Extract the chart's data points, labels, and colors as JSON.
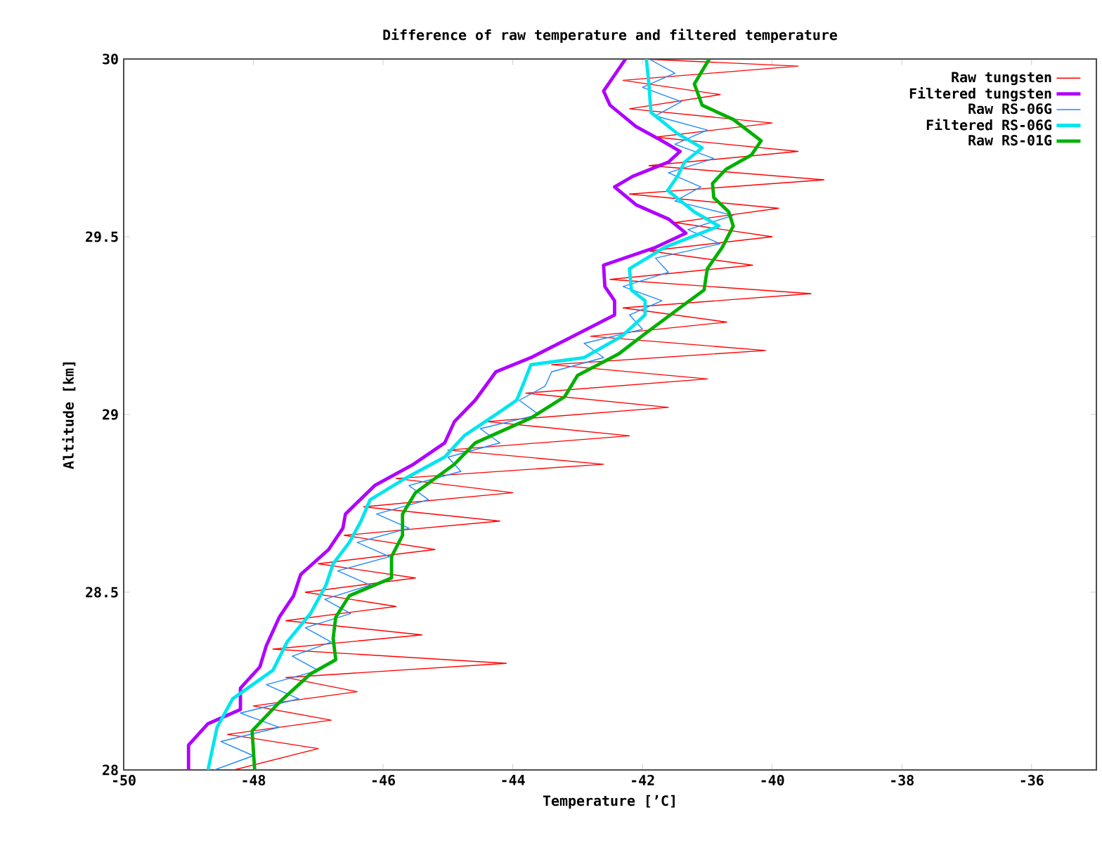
{
  "chart_data": {
    "type": "line",
    "title": "Difference of raw temperature and filtered temperature",
    "xlabel": "Temperature [’C]",
    "ylabel": "Altitude [km]",
    "xlim": [
      -50,
      -35
    ],
    "ylim": [
      28,
      30
    ],
    "xticks": [
      -50,
      -48,
      -46,
      -44,
      -42,
      -40,
      -38,
      -36
    ],
    "yticks": [
      28,
      28.5,
      29,
      29.5,
      30
    ],
    "grid": false,
    "legend": "top right",
    "marker": "none",
    "line_style": "solid",
    "series": [
      {
        "name": "Raw tungsten",
        "color": "#ff0000",
        "x": [
          -42.0,
          -39.6,
          -42.3,
          -40.8,
          -42.2,
          -40.0,
          -41.8,
          -39.6,
          -41.9,
          -39.2,
          -42.2,
          -39.9,
          -41.5,
          -40.0,
          -41.9,
          -40.3,
          -42.5,
          -39.4,
          -42.3,
          -40.7,
          -42.8,
          -40.1,
          -43.4,
          -41.0,
          -43.8,
          -41.6,
          -44.4,
          -42.2,
          -45.0,
          -42.6,
          -45.8,
          -44.0,
          -46.3,
          -44.2,
          -46.6,
          -45.2,
          -47.0,
          -45.5,
          -47.2,
          -45.8,
          -47.5,
          -45.4,
          -47.7,
          -44.1,
          -47.5,
          -46.4,
          -48.0,
          -46.8,
          -48.4,
          -47.0,
          -48.3
        ],
        "values": [
          30.0,
          29.98,
          29.94,
          29.9,
          29.86,
          29.82,
          29.78,
          29.74,
          29.7,
          29.66,
          29.62,
          29.58,
          29.54,
          29.5,
          29.46,
          29.42,
          29.38,
          29.34,
          29.3,
          29.26,
          29.22,
          29.18,
          29.14,
          29.1,
          29.06,
          29.02,
          28.98,
          28.94,
          28.9,
          28.86,
          28.82,
          28.78,
          28.74,
          28.7,
          28.66,
          28.62,
          28.58,
          28.54,
          28.5,
          28.46,
          28.42,
          28.38,
          28.34,
          28.3,
          28.26,
          28.22,
          28.18,
          28.14,
          28.1,
          28.06,
          28.0
        ]
      },
      {
        "name": "Filtered tungsten",
        "color": "#b000ff",
        "x": [
          -42.26,
          -42.6,
          -42.5,
          -42.1,
          -41.7,
          -41.42,
          -41.6,
          -42.15,
          -42.43,
          -42.1,
          -41.6,
          -41.33,
          -41.8,
          -42.6,
          -42.58,
          -42.43,
          -42.43,
          -43.07,
          -43.72,
          -44.26,
          -44.58,
          -44.9,
          -45.05,
          -45.53,
          -46.13,
          -46.58,
          -46.62,
          -46.84,
          -47.27,
          -47.38,
          -47.6,
          -47.8,
          -47.9,
          -48.2,
          -48.2,
          -48.7,
          -49.0,
          -49.0
        ],
        "values": [
          30.0,
          29.91,
          29.87,
          29.81,
          29.77,
          29.74,
          29.71,
          29.67,
          29.64,
          29.59,
          29.55,
          29.51,
          29.47,
          29.42,
          29.36,
          29.32,
          29.28,
          29.22,
          29.16,
          29.12,
          29.04,
          28.98,
          28.92,
          28.86,
          28.8,
          28.72,
          28.68,
          28.62,
          28.55,
          28.49,
          28.43,
          28.35,
          28.29,
          28.23,
          28.17,
          28.13,
          28.07,
          28.0
        ]
      },
      {
        "name": "Raw RS-06G",
        "color": "#1e88ff",
        "x": [
          -41.9,
          -41.5,
          -42.0,
          -41.4,
          -41.8,
          -41.0,
          -41.5,
          -40.9,
          -41.6,
          -41.1,
          -41.5,
          -40.6,
          -41.3,
          -40.8,
          -41.8,
          -41.6,
          -42.3,
          -41.7,
          -42.2,
          -42.0,
          -42.9,
          -42.6,
          -43.4,
          -43.5,
          -43.9,
          -43.6,
          -44.5,
          -44.2,
          -45.0,
          -44.8,
          -45.6,
          -45.3,
          -46.1,
          -45.6,
          -46.4,
          -45.9,
          -46.7,
          -46.2,
          -46.9,
          -46.5,
          -47.2,
          -46.8,
          -47.4,
          -47.0,
          -47.8,
          -47.3,
          -48.2,
          -47.6,
          -48.5,
          -48.0,
          -48.6
        ],
        "values": [
          30.0,
          29.96,
          29.92,
          29.88,
          29.84,
          29.8,
          29.76,
          29.72,
          29.68,
          29.64,
          29.6,
          29.56,
          29.52,
          29.48,
          29.44,
          29.4,
          29.36,
          29.32,
          29.28,
          29.24,
          29.2,
          29.16,
          29.12,
          29.08,
          29.04,
          29.0,
          28.96,
          28.92,
          28.88,
          28.84,
          28.8,
          28.76,
          28.72,
          28.68,
          28.64,
          28.6,
          28.56,
          28.52,
          28.48,
          28.44,
          28.4,
          28.36,
          28.32,
          28.28,
          28.24,
          28.2,
          28.16,
          28.12,
          28.08,
          28.04,
          28.0
        ]
      },
      {
        "name": "Filtered RS-06G",
        "color": "#00e5ee",
        "x": [
          -41.94,
          -41.9,
          -41.87,
          -41.46,
          -41.08,
          -41.35,
          -41.46,
          -41.61,
          -41.2,
          -40.82,
          -41.66,
          -42.2,
          -42.17,
          -41.96,
          -41.96,
          -42.32,
          -42.9,
          -43.72,
          -43.85,
          -43.94,
          -44.26,
          -44.75,
          -45.05,
          -45.66,
          -46.2,
          -46.34,
          -46.52,
          -46.77,
          -46.88,
          -47.12,
          -47.48,
          -47.7,
          -48.32,
          -48.56,
          -48.7
        ],
        "values": [
          30.0,
          29.93,
          29.85,
          29.79,
          29.75,
          29.71,
          29.67,
          29.63,
          29.57,
          29.53,
          29.47,
          29.41,
          29.35,
          29.32,
          29.28,
          29.22,
          29.16,
          29.14,
          29.08,
          29.04,
          29.0,
          28.94,
          28.88,
          28.82,
          28.76,
          28.7,
          28.64,
          28.58,
          28.52,
          28.44,
          28.36,
          28.28,
          28.2,
          28.12,
          28.0
        ]
      },
      {
        "name": "Raw RS-01G",
        "color": "#00b000",
        "x": [
          -40.97,
          -41.2,
          -41.08,
          -40.6,
          -40.17,
          -40.32,
          -40.71,
          -40.92,
          -40.9,
          -40.67,
          -40.6,
          -40.77,
          -41.0,
          -41.05,
          -41.35,
          -41.94,
          -42.37,
          -43.0,
          -43.2,
          -43.72,
          -44.58,
          -44.9,
          -45.5,
          -45.7,
          -45.7,
          -45.87,
          -45.87,
          -46.52,
          -46.73,
          -46.77,
          -46.73,
          -47.12,
          -47.6,
          -48.02,
          -47.98
        ],
        "values": [
          30.0,
          29.93,
          29.87,
          29.83,
          29.77,
          29.73,
          29.69,
          29.65,
          29.61,
          29.57,
          29.53,
          29.47,
          29.41,
          29.35,
          29.31,
          29.23,
          29.17,
          29.11,
          29.05,
          28.99,
          28.92,
          28.86,
          28.78,
          28.72,
          28.66,
          28.6,
          28.54,
          28.49,
          28.43,
          28.37,
          28.31,
          28.27,
          28.19,
          28.11,
          28.0
        ]
      }
    ]
  }
}
